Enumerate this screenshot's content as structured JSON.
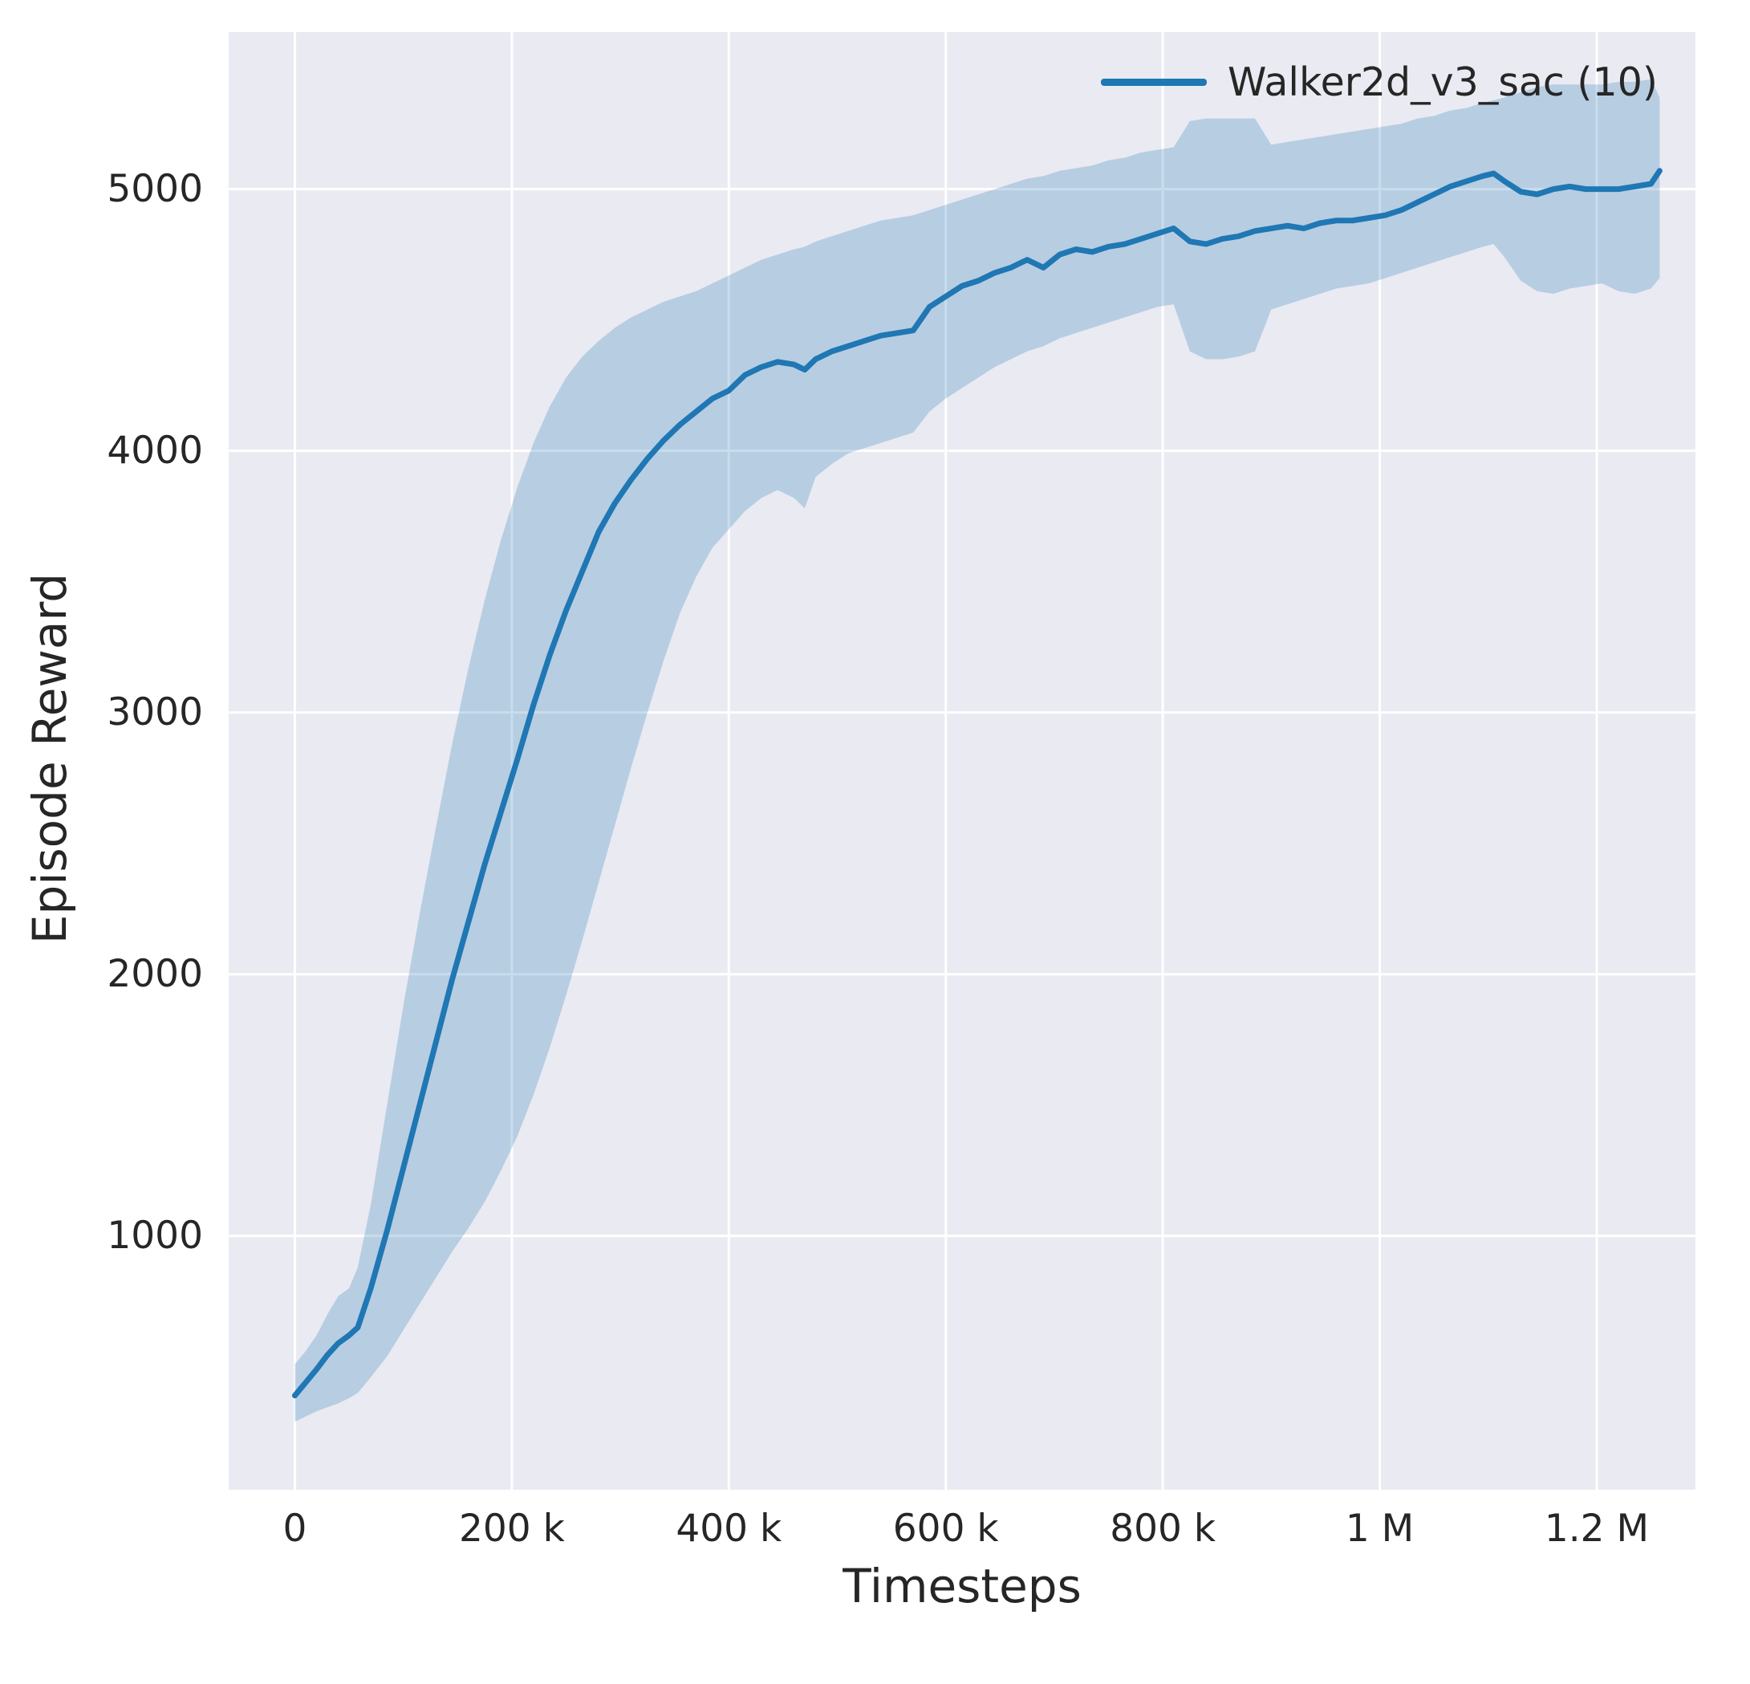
{
  "chart_data": {
    "type": "line",
    "xlabel": "Timesteps",
    "ylabel": "Episode Reward",
    "plot_bg": "#eaeaf2",
    "grid_color": "#ffffff",
    "text_color": "#262626",
    "grid": true,
    "xlim": [
      -61000,
      1291000
    ],
    "ylim": [
      30,
      5600
    ],
    "x_ticks": [
      {
        "value": 0,
        "label": "0"
      },
      {
        "value": 200000,
        "label": "200 k"
      },
      {
        "value": 400000,
        "label": "400 k"
      },
      {
        "value": 600000,
        "label": "600 k"
      },
      {
        "value": 800000,
        "label": "800 k"
      },
      {
        "value": 1000000,
        "label": "1 M"
      },
      {
        "value": 1200000,
        "label": "1.2 M"
      }
    ],
    "y_ticks": [
      {
        "value": 1000,
        "label": "1000"
      },
      {
        "value": 2000,
        "label": "2000"
      },
      {
        "value": 3000,
        "label": "3000"
      },
      {
        "value": 4000,
        "label": "4000"
      },
      {
        "value": 5000,
        "label": "5000"
      }
    ],
    "legend": {
      "position": "upper right",
      "entries": [
        {
          "label": "Walker2d_v3_sac (10)",
          "color": "#1f77b4"
        }
      ]
    },
    "series": [
      {
        "name": "Walker2d_v3_sac (10)",
        "color": "#1f77b4",
        "band_opacity": 0.25,
        "line_width": 7,
        "x": [
          0,
          10000,
          20000,
          30000,
          40000,
          50000,
          58000,
          70000,
          85000,
          100000,
          115000,
          130000,
          145000,
          160000,
          175000,
          190000,
          205000,
          220000,
          235000,
          250000,
          265000,
          280000,
          295000,
          310000,
          325000,
          340000,
          355000,
          370000,
          385000,
          400000,
          415000,
          430000,
          445000,
          460000,
          470000,
          480000,
          495000,
          510000,
          525000,
          540000,
          555000,
          570000,
          585000,
          600000,
          615000,
          630000,
          645000,
          660000,
          675000,
          690000,
          705000,
          720000,
          735000,
          750000,
          765000,
          780000,
          795000,
          810000,
          825000,
          840000,
          855000,
          870000,
          885000,
          900000,
          915000,
          930000,
          945000,
          960000,
          975000,
          990000,
          1005000,
          1020000,
          1035000,
          1050000,
          1065000,
          1080000,
          1095000,
          1105000,
          1115000,
          1130000,
          1145000,
          1160000,
          1175000,
          1190000,
          1205000,
          1220000,
          1235000,
          1250000,
          1258000
        ],
        "mean": [
          390,
          440,
          490,
          545,
          590,
          620,
          650,
          800,
          1020,
          1260,
          1500,
          1740,
          1980,
          2200,
          2420,
          2620,
          2820,
          3030,
          3220,
          3390,
          3540,
          3690,
          3800,
          3890,
          3970,
          4040,
          4100,
          4150,
          4200,
          4230,
          4290,
          4320,
          4340,
          4330,
          4310,
          4350,
          4380,
          4400,
          4420,
          4440,
          4450,
          4460,
          4550,
          4590,
          4630,
          4650,
          4680,
          4700,
          4730,
          4700,
          4750,
          4770,
          4760,
          4780,
          4790,
          4810,
          4830,
          4850,
          4800,
          4790,
          4810,
          4820,
          4840,
          4850,
          4860,
          4850,
          4870,
          4880,
          4880,
          4890,
          4900,
          4920,
          4950,
          4980,
          5010,
          5030,
          5050,
          5060,
          5030,
          4990,
          4980,
          5000,
          5010,
          5000,
          5000,
          5000,
          5010,
          5020,
          5070
        ],
        "lower": [
          290,
          310,
          330,
          345,
          360,
          380,
          400,
          460,
          540,
          640,
          740,
          840,
          940,
          1030,
          1130,
          1250,
          1380,
          1540,
          1720,
          1920,
          2130,
          2350,
          2570,
          2790,
          3000,
          3200,
          3380,
          3520,
          3630,
          3700,
          3770,
          3820,
          3850,
          3820,
          3780,
          3900,
          3950,
          3990,
          4010,
          4030,
          4050,
          4070,
          4150,
          4200,
          4240,
          4280,
          4320,
          4350,
          4380,
          4400,
          4430,
          4450,
          4470,
          4490,
          4510,
          4530,
          4550,
          4560,
          4380,
          4350,
          4350,
          4360,
          4380,
          4540,
          4560,
          4580,
          4600,
          4620,
          4630,
          4640,
          4660,
          4680,
          4700,
          4720,
          4740,
          4760,
          4780,
          4790,
          4740,
          4650,
          4610,
          4600,
          4620,
          4630,
          4640,
          4610,
          4600,
          4620,
          4660
        ],
        "upper": [
          510,
          560,
          620,
          700,
          770,
          800,
          880,
          1120,
          1500,
          1880,
          2230,
          2560,
          2880,
          3170,
          3430,
          3660,
          3860,
          4030,
          4170,
          4280,
          4360,
          4420,
          4470,
          4510,
          4540,
          4570,
          4590,
          4610,
          4640,
          4670,
          4700,
          4730,
          4750,
          4770,
          4780,
          4800,
          4820,
          4840,
          4860,
          4880,
          4890,
          4900,
          4920,
          4940,
          4960,
          4980,
          5000,
          5020,
          5040,
          5050,
          5070,
          5080,
          5090,
          5110,
          5120,
          5140,
          5150,
          5160,
          5260,
          5270,
          5270,
          5270,
          5270,
          5170,
          5180,
          5190,
          5200,
          5210,
          5220,
          5230,
          5240,
          5250,
          5270,
          5280,
          5300,
          5310,
          5330,
          5340,
          5350,
          5370,
          5390,
          5400,
          5400,
          5400,
          5400,
          5410,
          5410,
          5420,
          5350
        ]
      }
    ]
  }
}
